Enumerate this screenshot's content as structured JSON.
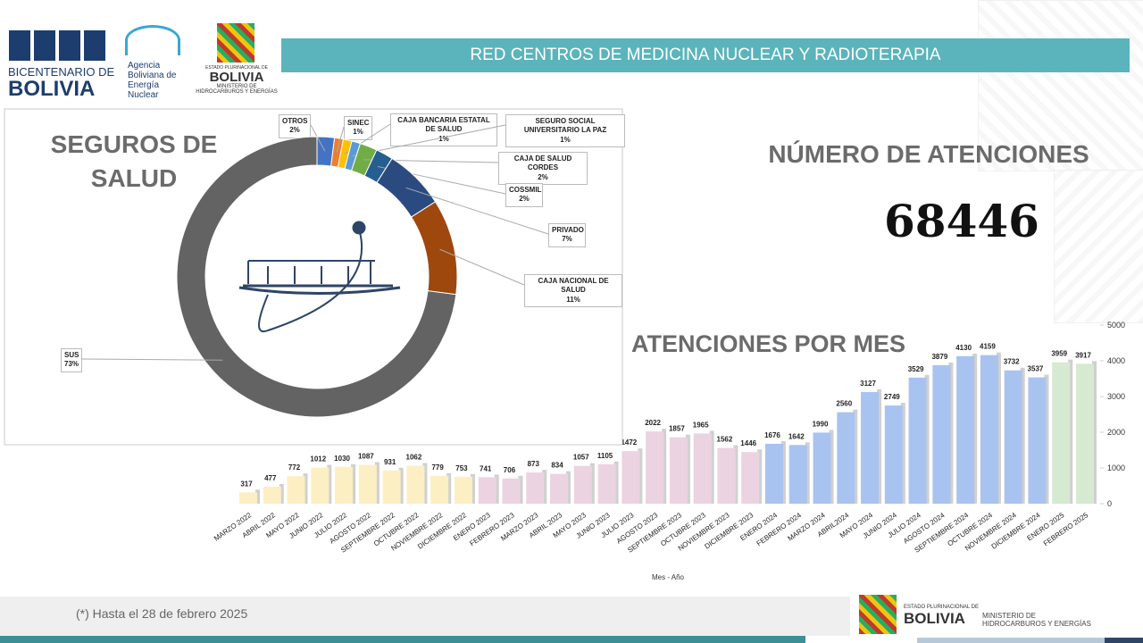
{
  "header": {
    "bicentenario": [
      "BICENTENARIO DE",
      "BOLIVIA"
    ],
    "aben": [
      "Agencia",
      "Boliviana de",
      "Energía",
      "Nuclear"
    ],
    "ministerio": [
      "ESTADO PLURINACIONAL DE",
      "BOLIVIA",
      "MINISTERIO DE",
      "HIDROCARBUROS Y ENERGÍAS"
    ],
    "title": "RED CENTROS DE MEDICINA NUCLEAR Y RADIOTERAPIA"
  },
  "kpi": {
    "label": "NÚMERO DE ATENCIONES",
    "value": 68446
  },
  "chart_data": [
    {
      "type": "donut",
      "title": "SEGUROS DE SALUD",
      "categories": [
        "OTROS",
        "SINEC",
        "CAJA BANCARIA ESTATAL DE SALUD",
        "SEGURO SOCIAL UNIVERSITARIO LA PAZ",
        "CAJA DE SALUD CORDES",
        "COSSMIL",
        "PRIVADO",
        "CAJA NACIONAL DE SALUD",
        "SUS"
      ],
      "values": [
        2,
        1,
        1,
        1,
        2,
        2,
        7,
        11,
        73
      ],
      "value_labels": [
        "2%",
        "1%",
        "1%",
        "1%",
        "2%",
        "2%",
        "7%",
        "11%",
        "73%"
      ],
      "colors": [
        "#4472c4",
        "#ed7d31",
        "#ffc000",
        "#5b9bd5",
        "#70ad47",
        "#255e91",
        "#2b4a80",
        "#9e480e",
        "#636363"
      ]
    },
    {
      "type": "bar",
      "title": "ATENCIONES POR MES",
      "x_label": "Mes - Año",
      "categories": [
        "MARZO 2022",
        "ABRIL  2022",
        "MAYO 2022",
        "JUNIO 2022",
        "JULIO 2022",
        "AGOSTO 2022",
        "SEPTIEMBRE 2022",
        "OCTUBRE 2022",
        "NOVIEMBRE 2022",
        "DICIEMBRE 2022",
        "ENERO 2023",
        "FEBRERO 2023",
        "MARZO 2023",
        "ABRIL 2023",
        "MAYO 2023",
        "JUNIO 2023",
        "JULIO 2023",
        "AGOSTO 2023",
        "SEPTIEMBRE 2023",
        "OCTUBRE 2023",
        "NOVIEMBRE 2023",
        "DICIEMBRE 2023",
        "ENERO 2024",
        "FEBRERO 2024",
        "MARZO 2024",
        "ABRIL2024",
        "MAYO 2024",
        "JUNIO 2024",
        "JULIO  2024",
        "AGOSTO  2024",
        "SEPTIEMBRE 2024",
        "OCTUBRE 2024",
        "NOVIEMBRE  2024",
        "DICIEMBRE 2024",
        "ENERO 2025",
        "FEBRERO 2025"
      ],
      "values": [
        317,
        477,
        772,
        1012,
        1030,
        1087,
        931,
        1062,
        779,
        753,
        741,
        706,
        873,
        834,
        1057,
        1105,
        1472,
        2022,
        1857,
        1965,
        1562,
        1446,
        1676,
        1642,
        1990,
        2560,
        3127,
        2749,
        3529,
        3879,
        4130,
        4159,
        3732,
        3537,
        3959,
        3917
      ],
      "colors": [
        "#fcefc3",
        "#fcefc3",
        "#fcefc3",
        "#fcefc3",
        "#fcefc3",
        "#fcefc3",
        "#fcefc3",
        "#fcefc3",
        "#fcefc3",
        "#fcefc3",
        "#ecd3e1",
        "#ecd3e1",
        "#ecd3e1",
        "#ecd3e1",
        "#ecd3e1",
        "#ecd3e1",
        "#ecd3e1",
        "#ecd3e1",
        "#ecd3e1",
        "#ecd3e1",
        "#ecd3e1",
        "#ecd3e1",
        "#a9c3f1",
        "#a9c3f1",
        "#a9c3f1",
        "#a9c3f1",
        "#a9c3f1",
        "#a9c3f1",
        "#a9c3f1",
        "#a9c3f1",
        "#a9c3f1",
        "#a9c3f1",
        "#a9c3f1",
        "#a9c3f1",
        "#d6e9d1",
        "#d6e9d1"
      ],
      "ylim": [
        0,
        5000
      ],
      "yticks": [
        0,
        1000,
        2000,
        3000,
        4000,
        5000
      ],
      "grid": false
    }
  ],
  "footer": {
    "note": "(*) Hasta el 28 de febrero 2025",
    "ministerio": [
      "ESTADO PLURINACIONAL DE",
      "BOLIVIA",
      "MINISTERIO DE",
      "HIDROCARBUROS Y ENERGÍAS"
    ]
  }
}
